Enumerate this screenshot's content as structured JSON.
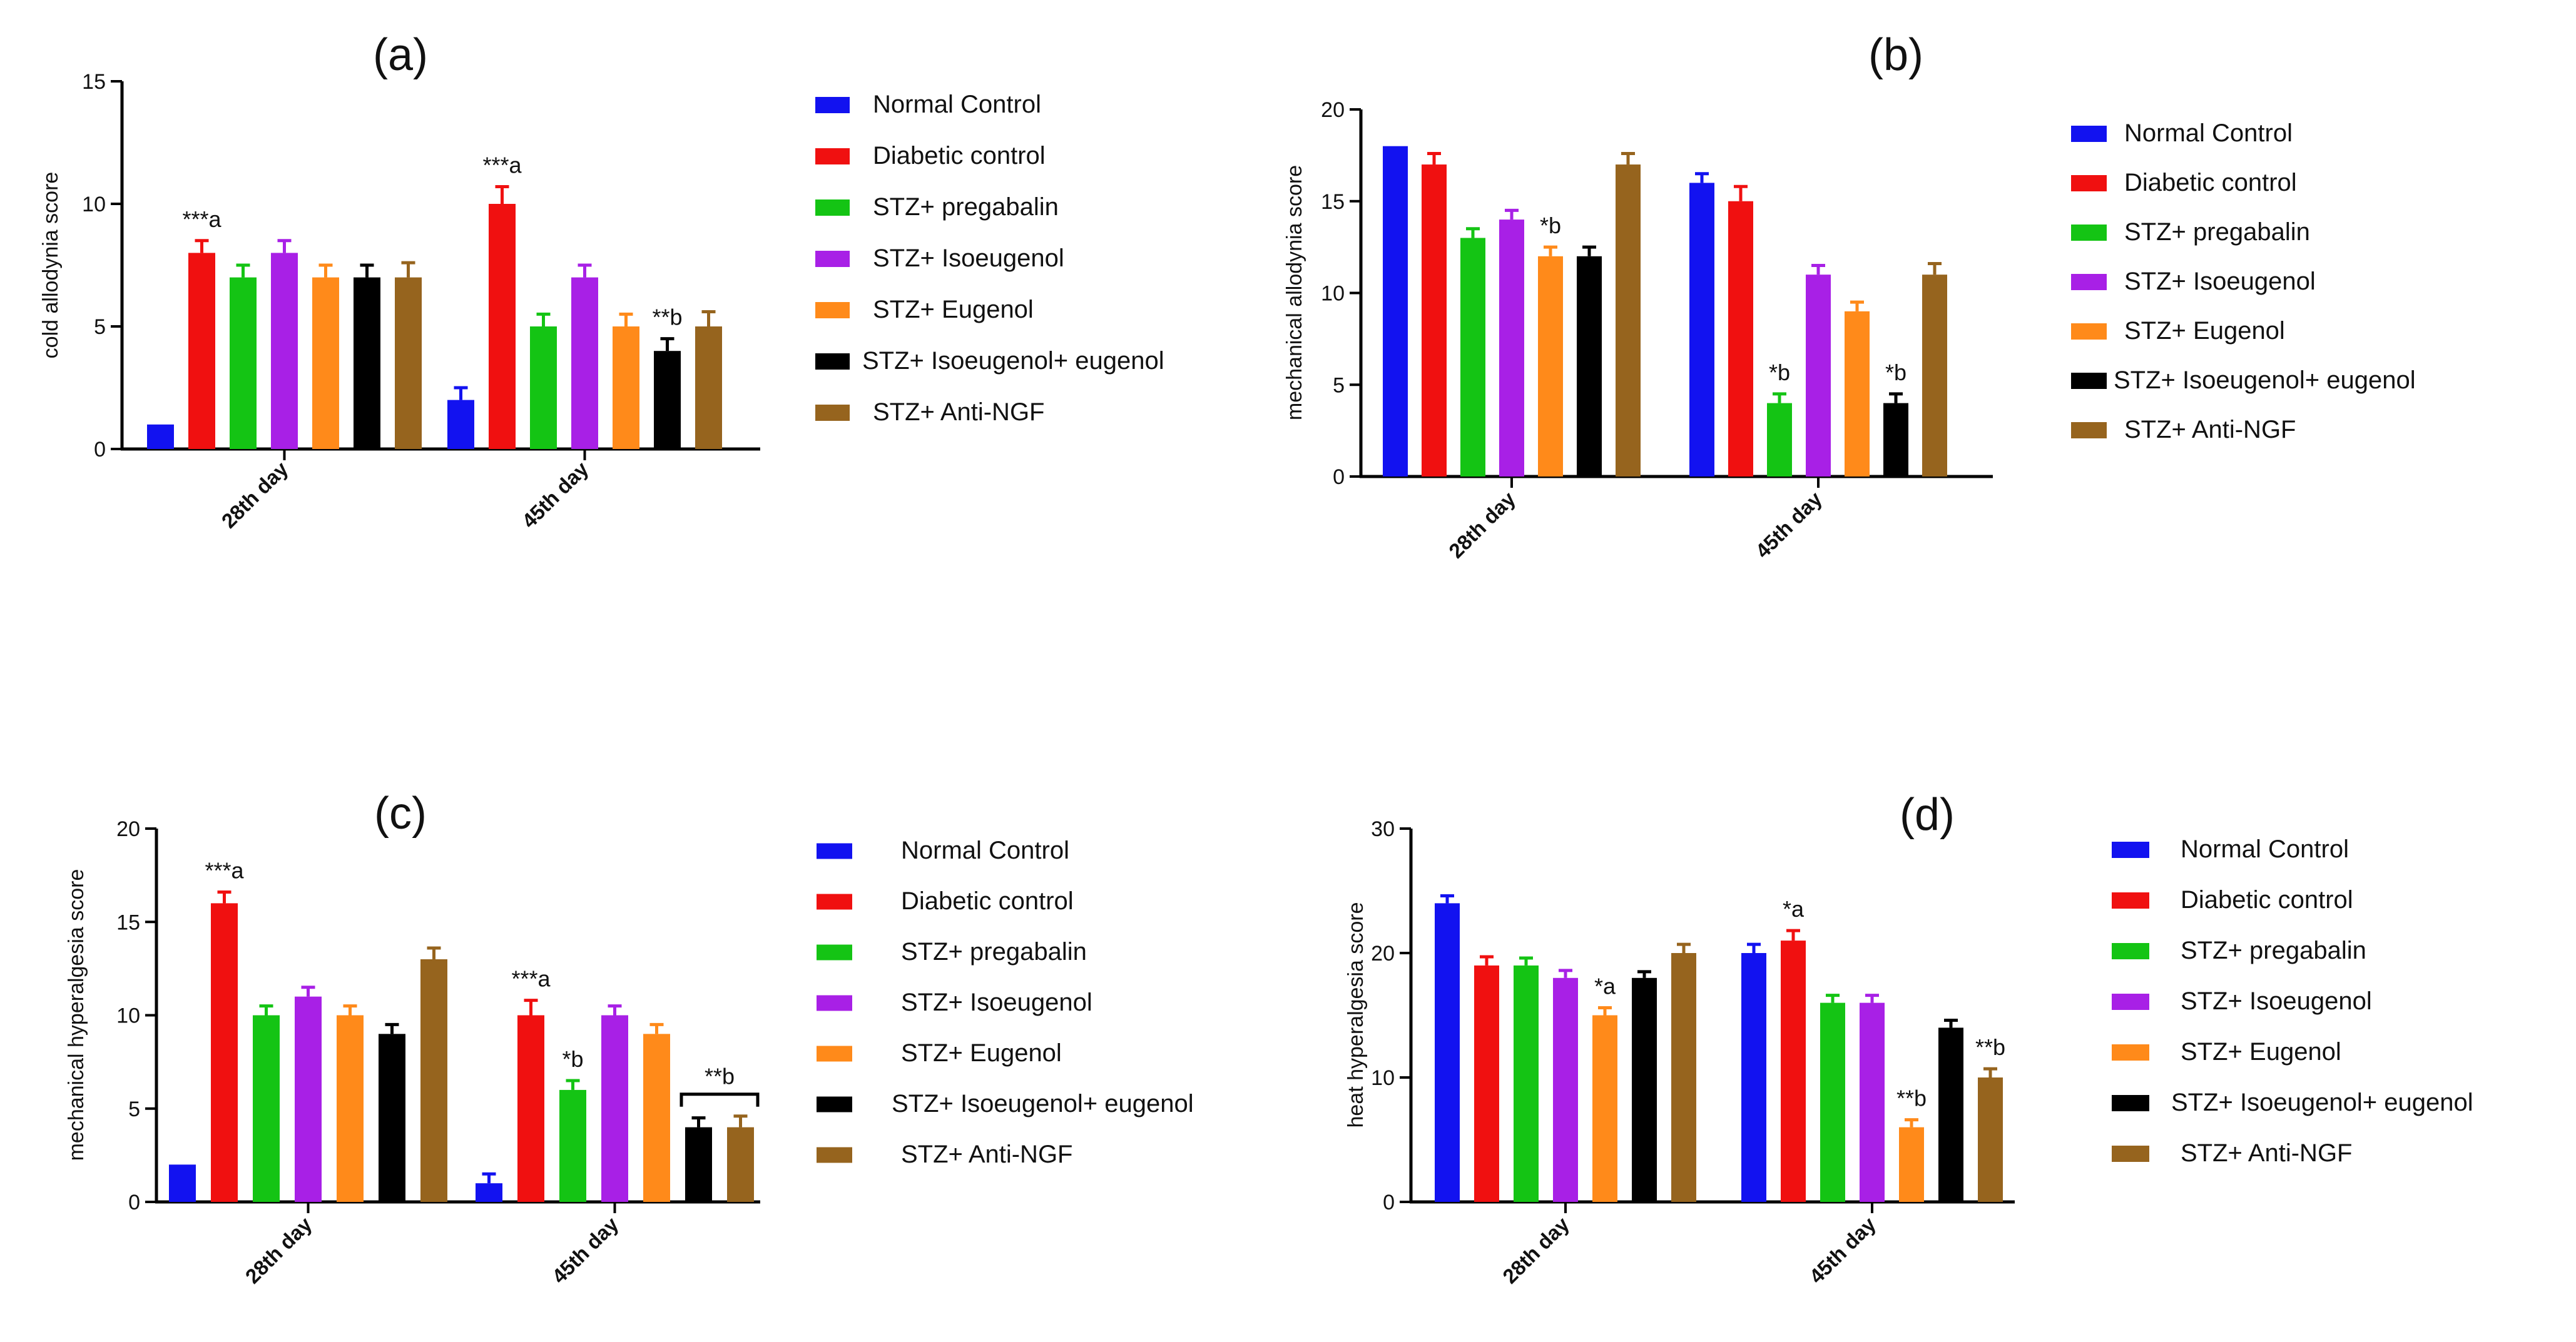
{
  "series_colors": [
    "#1212f0",
    "#f01010",
    "#14c414",
    "#a820e6",
    "#ff8a1a",
    "#000000",
    "#96641e"
  ],
  "chart_data": [
    {
      "id": "a",
      "type": "bar",
      "title": "(a)",
      "ylabel": "cold allodynia score",
      "xlabel": "",
      "ylim": [
        0,
        15
      ],
      "yticks": [
        0,
        5,
        10,
        15
      ],
      "categories": [
        "28th day",
        "45th day"
      ],
      "legend_position": "right",
      "series": [
        {
          "name": "Normal Control",
          "values": [
            1,
            2
          ],
          "errors": [
            0,
            0.5
          ]
        },
        {
          "name": "Diabetic control",
          "values": [
            8,
            10
          ],
          "errors": [
            0.5,
            0.7
          ]
        },
        {
          "name": "STZ+ pregabalin",
          "values": [
            7,
            5
          ],
          "errors": [
            0.5,
            0.5
          ]
        },
        {
          "name": "STZ+ Isoeugenol",
          "values": [
            8,
            7
          ],
          "errors": [
            0.5,
            0.5
          ]
        },
        {
          "name": "STZ+ Eugenol",
          "values": [
            7,
            5
          ],
          "errors": [
            0.5,
            0.5
          ]
        },
        {
          "name": "STZ+ Isoeugenol+ eugenol",
          "values": [
            7,
            4
          ],
          "errors": [
            0.5,
            0.5
          ]
        },
        {
          "name": "STZ+ Anti-NGF",
          "values": [
            7,
            5
          ],
          "errors": [
            0.6,
            0.6
          ]
        }
      ],
      "annotations": [
        {
          "text": "***a",
          "category": 0,
          "series": 1
        },
        {
          "text": "***a",
          "category": 1,
          "series": 1
        },
        {
          "text": "**b",
          "category": 1,
          "series": 5
        }
      ]
    },
    {
      "id": "b",
      "type": "bar",
      "title": "(b)",
      "ylabel": "mechanical allodynia score",
      "xlabel": "",
      "ylim": [
        0,
        20
      ],
      "yticks": [
        0,
        5,
        10,
        15,
        20
      ],
      "categories": [
        "28th day",
        "45th day"
      ],
      "legend_position": "right",
      "series": [
        {
          "name": "Normal Control",
          "values": [
            18,
            16
          ],
          "errors": [
            0,
            0.5
          ]
        },
        {
          "name": "Diabetic control",
          "values": [
            17,
            15
          ],
          "errors": [
            0.6,
            0.8
          ]
        },
        {
          "name": "STZ+ pregabalin",
          "values": [
            13,
            4
          ],
          "errors": [
            0.5,
            0.5
          ]
        },
        {
          "name": "STZ+ Isoeugenol",
          "values": [
            14,
            11
          ],
          "errors": [
            0.5,
            0.5
          ]
        },
        {
          "name": "STZ+ Eugenol",
          "values": [
            12,
            9
          ],
          "errors": [
            0.5,
            0.5
          ]
        },
        {
          "name": "STZ+ Isoeugenol+ eugenol",
          "values": [
            12,
            4
          ],
          "errors": [
            0.5,
            0.5
          ]
        },
        {
          "name": "STZ+ Anti-NGF",
          "values": [
            17,
            11
          ],
          "errors": [
            0.6,
            0.6
          ]
        }
      ],
      "annotations": [
        {
          "text": "*b",
          "category": 0,
          "series": 4
        },
        {
          "text": "*b",
          "category": 1,
          "series": 2
        },
        {
          "text": "*b",
          "category": 1,
          "series": 5
        }
      ]
    },
    {
      "id": "c",
      "type": "bar",
      "title": "(c)",
      "ylabel": "mechanical hyperalgesia score",
      "xlabel": "",
      "ylim": [
        0,
        20
      ],
      "yticks": [
        0,
        5,
        10,
        15,
        20
      ],
      "categories": [
        "28th day",
        "45th day"
      ],
      "legend_position": "right",
      "series": [
        {
          "name": "Normal Control",
          "values": [
            2,
            1
          ],
          "errors": [
            0,
            0.5
          ]
        },
        {
          "name": "Diabetic control",
          "values": [
            16,
            10
          ],
          "errors": [
            0.6,
            0.8
          ]
        },
        {
          "name": "STZ+ pregabalin",
          "values": [
            10,
            6
          ],
          "errors": [
            0.5,
            0.5
          ]
        },
        {
          "name": "STZ+ Isoeugenol",
          "values": [
            11,
            10
          ],
          "errors": [
            0.5,
            0.5
          ]
        },
        {
          "name": "STZ+ Eugenol",
          "values": [
            10,
            9
          ],
          "errors": [
            0.5,
            0.5
          ]
        },
        {
          "name": "STZ+ Isoeugenol+ eugenol",
          "values": [
            9,
            4
          ],
          "errors": [
            0.5,
            0.5
          ]
        },
        {
          "name": "STZ+ Anti-NGF",
          "values": [
            13,
            4
          ],
          "errors": [
            0.6,
            0.6
          ]
        }
      ],
      "annotations": [
        {
          "text": "***a",
          "category": 0,
          "series": 1
        },
        {
          "text": "***a",
          "category": 1,
          "series": 1
        },
        {
          "text": "*b",
          "category": 1,
          "series": 2
        }
      ],
      "bracket_annotations": [
        {
          "text": "**b",
          "category": 1,
          "from_series": 5,
          "to_series": 6
        }
      ]
    },
    {
      "id": "d",
      "type": "bar",
      "title": "(d)",
      "ylabel": "heat hyperalgesia score",
      "xlabel": "",
      "ylim": [
        0,
        30
      ],
      "yticks": [
        0,
        10,
        20,
        30
      ],
      "categories": [
        "28th day",
        "45th day"
      ],
      "legend_position": "right",
      "series": [
        {
          "name": "Normal Control",
          "values": [
            24,
            20
          ],
          "errors": [
            0.6,
            0.7
          ]
        },
        {
          "name": "Diabetic control",
          "values": [
            19,
            21
          ],
          "errors": [
            0.7,
            0.8
          ]
        },
        {
          "name": "STZ+ pregabalin",
          "values": [
            19,
            16
          ],
          "errors": [
            0.6,
            0.6
          ]
        },
        {
          "name": "STZ+ Isoeugenol",
          "values": [
            18,
            16
          ],
          "errors": [
            0.6,
            0.6
          ]
        },
        {
          "name": "STZ+ Eugenol",
          "values": [
            15,
            6
          ],
          "errors": [
            0.6,
            0.6
          ]
        },
        {
          "name": "STZ+ Isoeugenol+ eugenol",
          "values": [
            18,
            14
          ],
          "errors": [
            0.5,
            0.6
          ]
        },
        {
          "name": "STZ+ Anti-NGF",
          "values": [
            20,
            10
          ],
          "errors": [
            0.7,
            0.7
          ]
        }
      ],
      "annotations": [
        {
          "text": "*a",
          "category": 0,
          "series": 4
        },
        {
          "text": "*a",
          "category": 1,
          "series": 1
        },
        {
          "text": "**b",
          "category": 1,
          "series": 4
        },
        {
          "text": "**b",
          "category": 1,
          "series": 6
        }
      ]
    }
  ]
}
